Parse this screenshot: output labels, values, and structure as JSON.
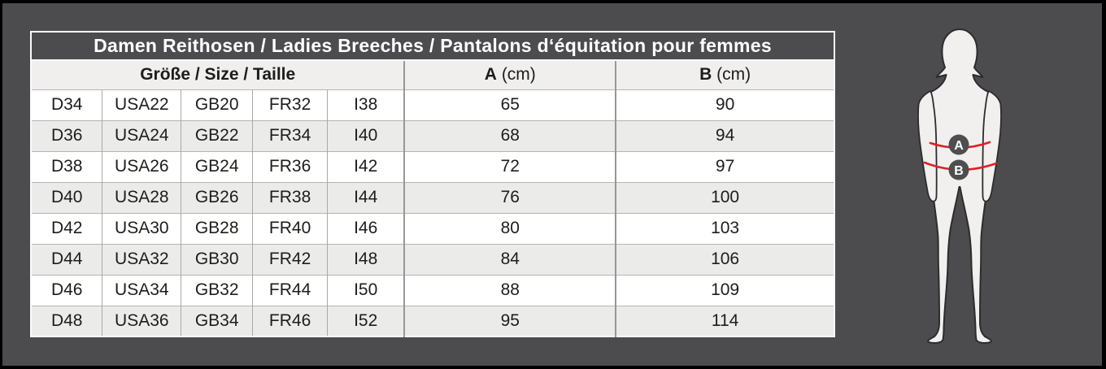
{
  "page": {
    "background": "#4c4c4e",
    "frame_color": "#000000"
  },
  "table": {
    "title": "Damen Reithosen / Ladies Breeches / Pantalons d‘équitation pour femmes",
    "header": {
      "size_label": "Größe / Size / Taille",
      "a_label": "A",
      "a_unit": "(cm)",
      "b_label": "B",
      "b_unit": "(cm)"
    },
    "rows": [
      {
        "de": "D34",
        "usa": "USA22",
        "gb": "GB20",
        "fr": "FR32",
        "it": "I38",
        "a": "65",
        "b": "90"
      },
      {
        "de": "D36",
        "usa": "USA24",
        "gb": "GB22",
        "fr": "FR34",
        "it": "I40",
        "a": "68",
        "b": "94"
      },
      {
        "de": "D38",
        "usa": "USA26",
        "gb": "GB24",
        "fr": "FR36",
        "it": "I42",
        "a": "72",
        "b": "97"
      },
      {
        "de": "D40",
        "usa": "USA28",
        "gb": "GB26",
        "fr": "FR38",
        "it": "I44",
        "a": "76",
        "b": "100"
      },
      {
        "de": "D42",
        "usa": "USA30",
        "gb": "GB28",
        "fr": "FR40",
        "it": "I46",
        "a": "80",
        "b": "103"
      },
      {
        "de": "D44",
        "usa": "USA32",
        "gb": "GB30",
        "fr": "FR42",
        "it": "I48",
        "a": "84",
        "b": "106"
      },
      {
        "de": "D46",
        "usa": "USA34",
        "gb": "GB32",
        "fr": "FR44",
        "it": "I50",
        "a": "88",
        "b": "109"
      },
      {
        "de": "D48",
        "usa": "USA36",
        "gb": "GB34",
        "fr": "FR46",
        "it": "I52",
        "a": "95",
        "b": "114"
      }
    ]
  },
  "figure": {
    "badge_a": "A",
    "badge_b": "B",
    "line_color": "#df2027",
    "badge_color": "#4e4e50",
    "body_fill": "#f1f0ee",
    "body_stroke": "#2c2c2e"
  }
}
